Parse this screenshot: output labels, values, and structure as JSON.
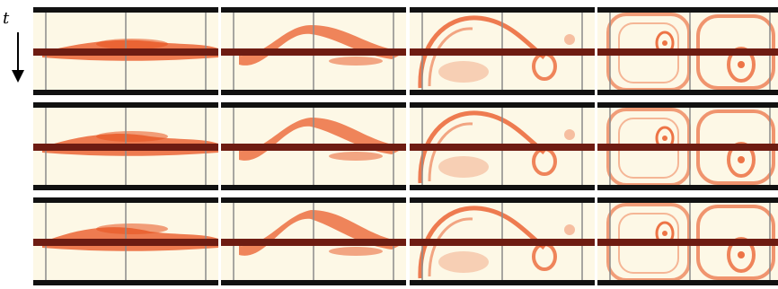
{
  "figure": {
    "time_axis_label": "t",
    "rows": 3,
    "columns": 4,
    "colors": {
      "background": "#fdf8e6",
      "dye": "#e8521e",
      "rod": "#6e1c12",
      "frame": "#111111",
      "grid_line": "#8a8a8a"
    }
  }
}
